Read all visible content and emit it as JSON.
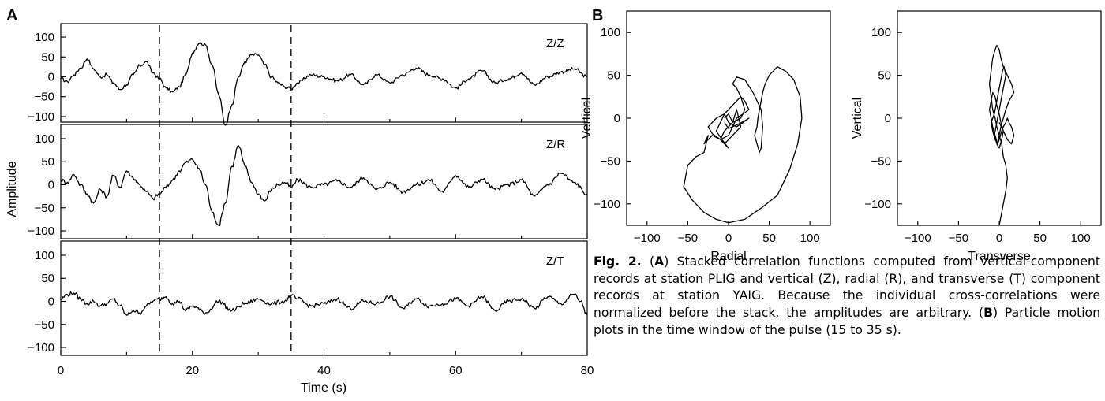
{
  "panel_a": {
    "letter": "A",
    "ylabel": "Amplitude",
    "xlabel": "Time (s)",
    "xticks": [
      "0",
      "20",
      "40",
      "60",
      "80"
    ],
    "yticks": [
      "100",
      "50",
      "0",
      "−50",
      "−100"
    ],
    "xlim": [
      0,
      80
    ],
    "ylim": [
      -125,
      125
    ],
    "window_lines_s": [
      15,
      35
    ],
    "traces": [
      {
        "label": "Z/Z"
      },
      {
        "label": "Z/R"
      },
      {
        "label": "Z/T"
      }
    ]
  },
  "panel_b": {
    "letter": "B",
    "ticks": [
      "100",
      "50",
      "0",
      "−50",
      "−100"
    ],
    "xticks": [
      "−100",
      "−50",
      "0",
      "50",
      "100"
    ],
    "lim": [
      -125,
      125
    ],
    "plots": [
      {
        "xlabel": "Radial",
        "ylabel": "Vertical"
      },
      {
        "xlabel": "Transverse",
        "ylabel": "Vertical"
      }
    ]
  },
  "chart_data": [
    {
      "type": "line",
      "title": "",
      "xlabel": "Time (s)",
      "ylabel": "Amplitude",
      "xlim": [
        0,
        80
      ],
      "ylim": [
        -125,
        125
      ],
      "series": [
        {
          "name": "Z/Z",
          "x": [
            0,
            1,
            2,
            3,
            4,
            5,
            6,
            7,
            8,
            9,
            10,
            11,
            12,
            13,
            14,
            15,
            16,
            17,
            18,
            19,
            20,
            21,
            22,
            23,
            24,
            25,
            26,
            27,
            28,
            29,
            30,
            31,
            32,
            33,
            34,
            35,
            36,
            38,
            40,
            42,
            44,
            46,
            48,
            50,
            52,
            54,
            56,
            58,
            60,
            62,
            64,
            66,
            68,
            70,
            72,
            74,
            76,
            78,
            80
          ],
          "y": [
            -5,
            -12,
            5,
            22,
            45,
            20,
            0,
            5,
            -15,
            -32,
            -20,
            5,
            28,
            38,
            10,
            -5,
            -28,
            -38,
            -25,
            5,
            60,
            85,
            80,
            30,
            -45,
            -122,
            -70,
            0,
            38,
            55,
            55,
            30,
            0,
            -15,
            -25,
            -30,
            -15,
            5,
            0,
            -10,
            5,
            -20,
            5,
            -15,
            5,
            22,
            5,
            -5,
            -28,
            -5,
            15,
            -15,
            -5,
            10,
            -20,
            0,
            12,
            20,
            0
          ]
        },
        {
          "name": "Z/R",
          "x": [
            0,
            1,
            2,
            3,
            4,
            5,
            6,
            7,
            8,
            9,
            10,
            11,
            12,
            13,
            14,
            15,
            16,
            17,
            18,
            19,
            20,
            21,
            22,
            23,
            24,
            25,
            26,
            27,
            28,
            29,
            30,
            31,
            32,
            33,
            34,
            35,
            36,
            38,
            40,
            42,
            44,
            46,
            48,
            50,
            52,
            54,
            56,
            58,
            60,
            62,
            64,
            66,
            68,
            70,
            72,
            74,
            76,
            78,
            80
          ],
          "y": [
            10,
            5,
            22,
            0,
            -20,
            -40,
            -10,
            -25,
            20,
            -5,
            30,
            15,
            0,
            -15,
            -30,
            -20,
            -5,
            10,
            30,
            48,
            55,
            35,
            0,
            -60,
            -88,
            -40,
            40,
            85,
            40,
            5,
            -20,
            -35,
            -10,
            0,
            5,
            -5,
            10,
            -5,
            0,
            8,
            -5,
            15,
            -10,
            5,
            -15,
            0,
            10,
            -15,
            20,
            -5,
            12,
            -10,
            0,
            10,
            -25,
            0,
            25,
            5,
            -20
          ]
        },
        {
          "name": "Z/T",
          "x": [
            0,
            1,
            2,
            3,
            4,
            5,
            6,
            7,
            8,
            9,
            10,
            11,
            12,
            13,
            14,
            15,
            16,
            17,
            18,
            19,
            20,
            22,
            24,
            26,
            28,
            30,
            32,
            34,
            35,
            36,
            38,
            40,
            42,
            44,
            46,
            48,
            50,
            52,
            54,
            56,
            58,
            60,
            62,
            64,
            66,
            68,
            70,
            72,
            74,
            76,
            78,
            79,
            80
          ],
          "y": [
            5,
            15,
            18,
            5,
            -5,
            0,
            -10,
            -5,
            5,
            -10,
            -30,
            -20,
            -25,
            -10,
            0,
            5,
            10,
            -5,
            0,
            -20,
            -10,
            -25,
            0,
            -20,
            -5,
            5,
            -5,
            0,
            12,
            5,
            -10,
            -5,
            5,
            -15,
            0,
            -5,
            10,
            -15,
            5,
            -10,
            -5,
            5,
            -10,
            10,
            -20,
            0,
            5,
            -15,
            10,
            -5,
            15,
            0,
            -30
          ]
        }
      ]
    },
    {
      "type": "scatter",
      "title": "",
      "xlabel": "Radial",
      "ylabel": "Vertical",
      "xlim": [
        -125,
        125
      ],
      "ylim": [
        -125,
        125
      ],
      "series": [
        {
          "x": [
            -5,
            0,
            5,
            10,
            15,
            5,
            -5,
            -10,
            -20,
            -30,
            -25,
            -30,
            -40,
            -50,
            -55,
            -45,
            -30,
            -15,
            0,
            20,
            40,
            60,
            75,
            85,
            90,
            88,
            80,
            70,
            60,
            50,
            45,
            42,
            40,
            38,
            36,
            35,
            32,
            35,
            38,
            40,
            42,
            40,
            30,
            20,
            10,
            5,
            10,
            15,
            20,
            15,
            5,
            0,
            -5,
            -10,
            -5,
            0,
            -8,
            -15,
            -10,
            -5,
            0,
            10,
            15,
            20,
            25,
            18,
            10,
            5,
            0,
            -10,
            -20,
            -25,
            -15,
            -5,
            0,
            10,
            18,
            25,
            20,
            10,
            0,
            -5
          ],
          "y": [
            0,
            5,
            -5,
            10,
            -10,
            -20,
            -30,
            -25,
            -20,
            -30,
            -20,
            -40,
            -45,
            -55,
            -80,
            -95,
            -110,
            -118,
            -122,
            -118,
            -105,
            -90,
            -60,
            -30,
            0,
            25,
            45,
            55,
            60,
            50,
            40,
            30,
            20,
            10,
            0,
            -10,
            -20,
            -30,
            -40,
            -35,
            -10,
            10,
            30,
            45,
            48,
            40,
            35,
            25,
            10,
            0,
            -5,
            -10,
            -15,
            -25,
            -30,
            -35,
            -25,
            -15,
            -5,
            5,
            10,
            20,
            25,
            20,
            10,
            5,
            0,
            -10,
            -20,
            -25,
            -18,
            -10,
            0,
            5,
            -5,
            -10,
            -5,
            0,
            -3,
            -8,
            -12,
            -5
          ]
        }
      ]
    },
    {
      "type": "scatter",
      "title": "",
      "xlabel": "Transverse",
      "ylabel": "Vertical",
      "xlim": [
        -125,
        125
      ],
      "ylim": [
        -125,
        125
      ],
      "series": [
        {
          "x": [
            0,
            2,
            5,
            8,
            10,
            8,
            5,
            3,
            0,
            -3,
            -5,
            -8,
            -10,
            -12,
            -10,
            -8,
            -5,
            -3,
            0,
            2,
            5,
            10,
            15,
            18,
            12,
            8,
            5,
            2,
            0,
            -2,
            -5,
            -8,
            -10,
            -6,
            -4,
            -2,
            0,
            2,
            4,
            6,
            8,
            6,
            4,
            2,
            0,
            -2,
            -4,
            -6,
            -3,
            0,
            3,
            5,
            2,
            0,
            -3,
            -5,
            -8,
            -10,
            -12,
            -10,
            -8,
            -5,
            -2,
            0,
            3,
            5,
            8,
            10,
            12,
            15,
            18,
            15,
            10,
            5,
            0
          ],
          "y": [
            -125,
            -115,
            -100,
            -85,
            -70,
            -55,
            -45,
            -30,
            -20,
            -10,
            0,
            10,
            25,
            40,
            55,
            70,
            80,
            85,
            80,
            70,
            60,
            50,
            40,
            30,
            20,
            10,
            0,
            -10,
            -20,
            -30,
            -25,
            -15,
            -5,
            5,
            15,
            25,
            35,
            45,
            55,
            60,
            50,
            40,
            30,
            20,
            10,
            0,
            -10,
            -20,
            -30,
            -35,
            -25,
            -15,
            -5,
            5,
            15,
            25,
            30,
            20,
            10,
            0,
            -10,
            -20,
            -30,
            -25,
            -15,
            -10,
            -5,
            0,
            -5,
            -10,
            -20,
            -30,
            -25,
            -15,
            -5
          ]
        }
      ]
    }
  ],
  "caption": {
    "fig_label": "Fig. 2.",
    "part_a_letter": "A",
    "part_a_text": "Stacked correlation functions computed from vertical-component records at station PLIG and vertical (Z), radial (R), and transverse (T) component records at station YAIG. Because the individual cross-correlations were normalized before the stack, the amplitudes are arbitrary.",
    "part_b_letter": "B",
    "part_b_text": "Particle motion plots in the time window of the pulse (15 to 35 s)."
  }
}
